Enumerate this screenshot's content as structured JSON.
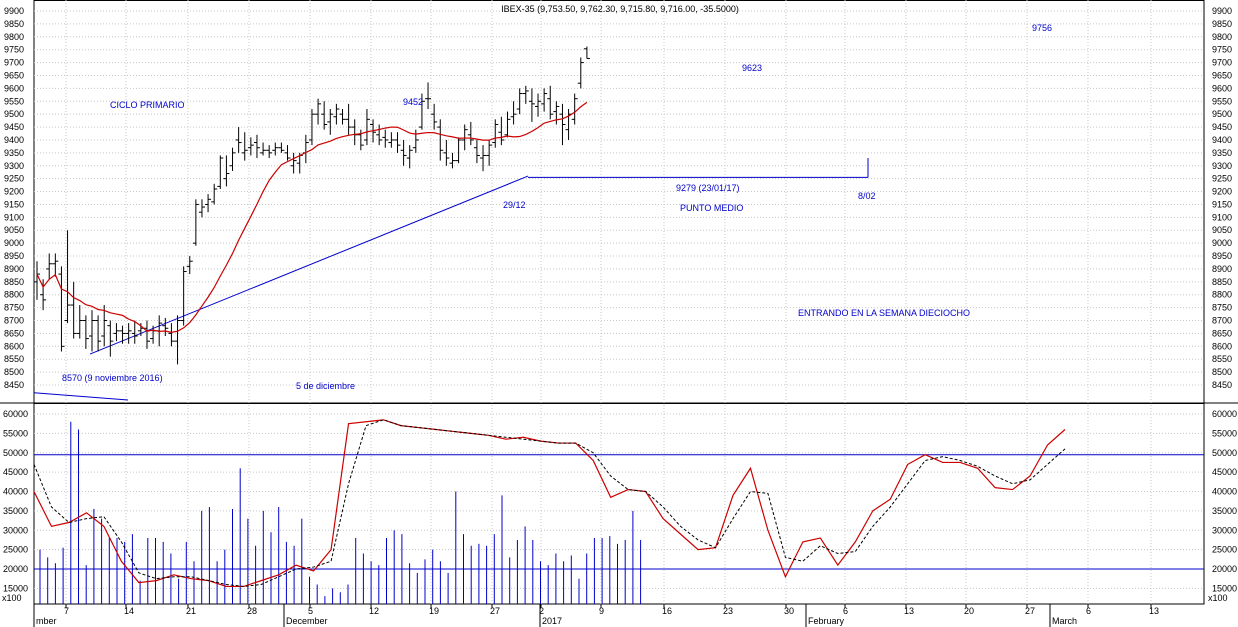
{
  "chart_data": [
    {
      "type": "ohlc",
      "title": "IBEX-35 (9,753.50, 9,762.30, 9,715.80, 9,716.00, -35.5000)",
      "ylim": [
        8400,
        9920
      ],
      "y_ticks": [
        8450,
        8500,
        8550,
        8600,
        8650,
        8700,
        8750,
        8800,
        8850,
        8900,
        8950,
        9000,
        9050,
        9100,
        9150,
        9200,
        9250,
        9300,
        9350,
        9400,
        9450,
        9500,
        9550,
        9600,
        9650,
        9700,
        9750,
        9800,
        9850,
        9900
      ],
      "grid": true,
      "ohlc": [
        [
          8850,
          8930,
          8780,
          8880
        ],
        [
          8800,
          8860,
          8740,
          8780
        ],
        [
          8900,
          8960,
          8860,
          8920
        ],
        [
          8920,
          8960,
          8870,
          8930
        ],
        [
          8880,
          8910,
          8580,
          8600
        ],
        [
          8700,
          9050,
          8690,
          8760
        ],
        [
          8760,
          8850,
          8630,
          8650
        ],
        [
          8650,
          8760,
          8630,
          8700
        ],
        [
          8700,
          8720,
          8590,
          8630
        ],
        [
          8640,
          8740,
          8580,
          8700
        ],
        [
          8700,
          8720,
          8580,
          8620
        ],
        [
          8640,
          8760,
          8600,
          8700
        ],
        [
          8680,
          8700,
          8560,
          8620
        ],
        [
          8650,
          8690,
          8620,
          8660
        ],
        [
          8660,
          8680,
          8610,
          8650
        ],
        [
          8650,
          8690,
          8610,
          8660
        ],
        [
          8650,
          8700,
          8610,
          8640
        ],
        [
          8660,
          8690,
          8640,
          8670
        ],
        [
          8670,
          8700,
          8590,
          8620
        ],
        [
          8630,
          8680,
          8610,
          8660
        ],
        [
          8660,
          8720,
          8600,
          8690
        ],
        [
          8680,
          8710,
          8640,
          8670
        ],
        [
          8650,
          8690,
          8600,
          8620
        ],
        [
          8620,
          8720,
          8530,
          8700
        ],
        [
          8700,
          8910,
          8680,
          8890
        ],
        [
          8910,
          8950,
          8880,
          8930
        ],
        [
          9000,
          9170,
          8990,
          9150
        ],
        [
          9120,
          9170,
          9100,
          9140
        ],
        [
          9150,
          9190,
          9120,
          9170
        ],
        [
          9160,
          9230,
          9150,
          9210
        ],
        [
          9220,
          9340,
          9210,
          9330
        ],
        [
          9250,
          9340,
          9220,
          9270
        ],
        [
          9300,
          9370,
          9280,
          9350
        ],
        [
          9400,
          9450,
          9350,
          9390
        ],
        [
          9350,
          9430,
          9320,
          9360
        ],
        [
          9370,
          9410,
          9340,
          9380
        ],
        [
          9390,
          9420,
          9330,
          9370
        ],
        [
          9350,
          9390,
          9340,
          9360
        ],
        [
          9360,
          9380,
          9330,
          9350
        ],
        [
          9360,
          9390,
          9340,
          9370
        ],
        [
          9370,
          9390,
          9350,
          9360
        ],
        [
          9350,
          9380,
          9320,
          9330
        ],
        [
          9300,
          9350,
          9270,
          9320
        ],
        [
          9310,
          9350,
          9270,
          9340
        ],
        [
          9350,
          9420,
          9310,
          9390
        ],
        [
          9400,
          9520,
          9380,
          9500
        ],
        [
          9500,
          9560,
          9460,
          9540
        ],
        [
          9500,
          9550,
          9440,
          9460
        ],
        [
          9470,
          9520,
          9420,
          9500
        ],
        [
          9490,
          9540,
          9460,
          9520
        ],
        [
          9500,
          9520,
          9460,
          9480
        ],
        [
          9480,
          9540,
          9420,
          9450
        ],
        [
          9450,
          9480,
          9380,
          9420
        ],
        [
          9420,
          9440,
          9360,
          9380
        ],
        [
          9400,
          9520,
          9380,
          9480
        ],
        [
          9460,
          9480,
          9390,
          9430
        ],
        [
          9420,
          9460,
          9380,
          9400
        ],
        [
          9410,
          9440,
          9370,
          9400
        ],
        [
          9390,
          9430,
          9370,
          9400
        ],
        [
          9400,
          9430,
          9350,
          9380
        ],
        [
          9360,
          9400,
          9300,
          9340
        ],
        [
          9330,
          9380,
          9290,
          9360
        ],
        [
          9370,
          9440,
          9350,
          9400
        ],
        [
          9450,
          9580,
          9440,
          9550
        ],
        [
          9560,
          9623,
          9520,
          9560
        ],
        [
          9500,
          9540,
          9440,
          9470
        ],
        [
          9450,
          9480,
          9320,
          9360
        ],
        [
          9350,
          9400,
          9300,
          9330
        ],
        [
          9310,
          9350,
          9290,
          9320
        ],
        [
          9320,
          9410,
          9310,
          9400
        ],
        [
          9400,
          9460,
          9360,
          9440
        ],
        [
          9420,
          9470,
          9380,
          9400
        ],
        [
          9370,
          9400,
          9310,
          9340
        ],
        [
          9330,
          9380,
          9279,
          9340
        ],
        [
          9340,
          9400,
          9300,
          9380
        ],
        [
          9390,
          9480,
          9370,
          9460
        ],
        [
          9430,
          9490,
          9380,
          9400
        ],
        [
          9420,
          9510,
          9410,
          9480
        ],
        [
          9490,
          9550,
          9460,
          9500
        ],
        [
          9520,
          9600,
          9500,
          9580
        ],
        [
          9580,
          9610,
          9540,
          9590
        ],
        [
          9550,
          9600,
          9470,
          9540
        ],
        [
          9530,
          9580,
          9490,
          9550
        ],
        [
          9540,
          9600,
          9510,
          9580
        ],
        [
          9560,
          9610,
          9480,
          9500
        ],
        [
          9510,
          9550,
          9460,
          9530
        ],
        [
          9500,
          9540,
          9380,
          9460
        ],
        [
          9440,
          9520,
          9400,
          9500
        ],
        [
          9480,
          9580,
          9460,
          9560
        ],
        [
          9620,
          9720,
          9600,
          9700
        ],
        [
          9753.5,
          9762.3,
          9715.8,
          9716
        ]
      ],
      "x_ticks": [
        "7",
        "14",
        "21",
        "28",
        "5",
        "12",
        "19",
        "27",
        "2",
        "9",
        "16",
        "23",
        "30",
        "6",
        "13",
        "20",
        "27",
        "6",
        "13"
      ],
      "month_labels": [
        "mber",
        "December",
        "2017",
        "February",
        "March"
      ],
      "annotations": [
        "CICLO PRIMARIO",
        "9452",
        "9623",
        "9756",
        "29/12",
        "9279 (23/01/17)",
        "PUNTO MEDIO",
        "8/02",
        "ENTRANDO EN LA SEMANA DIECIOCHO",
        "8570 (9 noviembre 2016)",
        "5 de diciembre"
      ]
    },
    {
      "type": "bar",
      "ylim": [
        12500,
        62000
      ],
      "y_ticks": [
        15000,
        20000,
        25000,
        30000,
        35000,
        40000,
        45000,
        50000,
        55000,
        60000
      ],
      "y_scale_label": "x100",
      "reference_lines": [
        49500,
        20000
      ],
      "volume": [
        25000,
        23000,
        21500,
        25500,
        58000,
        56000,
        21000,
        35500,
        33000,
        28000,
        28000,
        27000,
        29000,
        17000,
        28000,
        28000,
        27000,
        24000,
        17500,
        27000,
        22000,
        35000,
        36000,
        22000,
        25000,
        35500,
        46000,
        33000,
        26000,
        35000,
        29500,
        36000,
        27000,
        26000,
        33000,
        18000,
        16000,
        13000,
        15000,
        14000,
        16000,
        28000,
        24000,
        22000,
        21000,
        28000,
        30000,
        29000,
        21500,
        19000,
        22500,
        25000,
        22000,
        19000,
        40000,
        29000,
        26000,
        26500,
        26000,
        29000,
        39000,
        23000,
        27500,
        31000,
        27500,
        22000,
        21000,
        24000,
        22000,
        23500,
        17500,
        24000,
        28000,
        28000,
        28500,
        26500,
        27500,
        35000,
        27500
      ],
      "series": [
        {
          "values": [
            40000,
            31000,
            32000,
            34500,
            31000,
            22000,
            16500,
            17000,
            18500,
            17500,
            17000,
            15500,
            15500,
            17000,
            18500,
            21000,
            19500,
            25000,
            57500,
            58000,
            58500,
            57000,
            56500,
            56000,
            55500,
            55000,
            54500,
            53500,
            54000,
            53000,
            52500,
            52500,
            48000,
            38500,
            40500,
            40000,
            33000,
            29000,
            25000,
            25500,
            39000,
            46000,
            30000,
            18000,
            27000,
            28000,
            21000,
            27000,
            35000,
            38000,
            47000,
            49500,
            47500,
            47500,
            46000,
            41000,
            40500,
            44000,
            52000,
            56000
          ]
        },
        {
          "values": [
            47000,
            36000,
            32000,
            33000,
            33500,
            27000,
            19000,
            17500,
            18000,
            18000,
            17000,
            16000,
            15500,
            16000,
            18000,
            20000,
            20500,
            22000,
            42000,
            57000,
            58500,
            57000,
            56500,
            56000,
            55500,
            55000,
            54500,
            54000,
            53500,
            53000,
            52500,
            52500,
            50000,
            44000,
            40500,
            40000,
            36000,
            31000,
            27500,
            25500,
            33000,
            40000,
            39500,
            23000,
            22000,
            26000,
            24000,
            24500,
            31000,
            36000,
            42000,
            48000,
            49000,
            48000,
            46500,
            44000,
            42000,
            43000,
            47000,
            51000
          ]
        }
      ]
    }
  ]
}
